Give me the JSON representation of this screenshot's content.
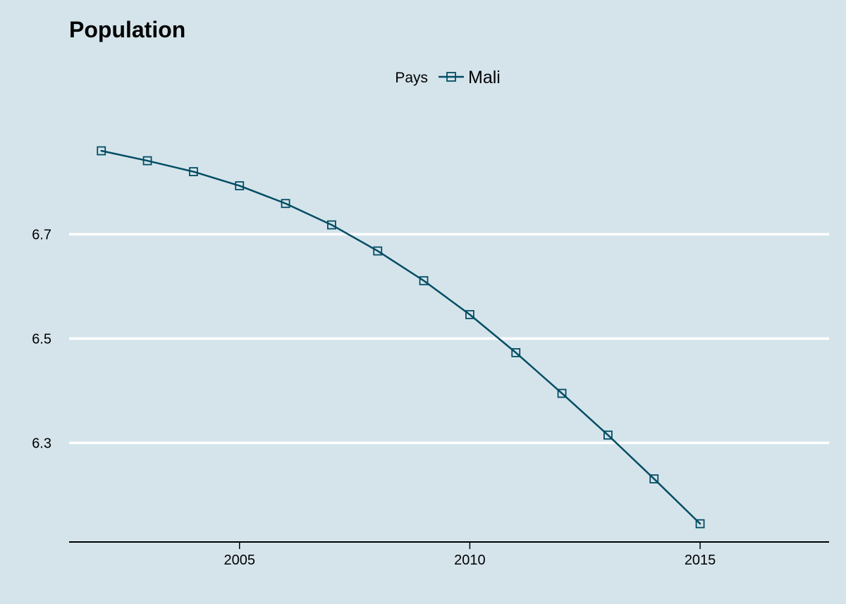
{
  "chart_data": {
    "type": "line",
    "title": "Population",
    "xlabel": "",
    "ylabel": "",
    "legend": {
      "title": "Pays",
      "position": "top",
      "entries": [
        "Mali"
      ]
    },
    "xlim": [
      2001.3,
      2017.8
    ],
    "ylim": [
      6.11,
      6.96
    ],
    "xticks": [
      2005,
      2010,
      2015
    ],
    "yticks": [
      6.3,
      6.5,
      6.7
    ],
    "xtick_labels": [
      "2005",
      "2010",
      "2015"
    ],
    "ytick_labels": [
      "6.3",
      "6.5",
      "6.7"
    ],
    "grid": {
      "horizontal": true,
      "vertical": false
    },
    "series": [
      {
        "name": "Mali",
        "marker": "square-open",
        "x": [
          2002,
          2003,
          2004,
          2005,
          2006,
          2007,
          2008,
          2009,
          2010,
          2011,
          2012,
          2013,
          2014,
          2015
        ],
        "values": [
          6.86,
          6.841,
          6.82,
          6.793,
          6.759,
          6.718,
          6.668,
          6.611,
          6.546,
          6.473,
          6.395,
          6.315,
          6.231,
          6.145
        ]
      }
    ],
    "colors": {
      "background": "#d5e4eb",
      "line": "#014d64",
      "grid": "#ffffff",
      "axis": "#000000"
    }
  }
}
